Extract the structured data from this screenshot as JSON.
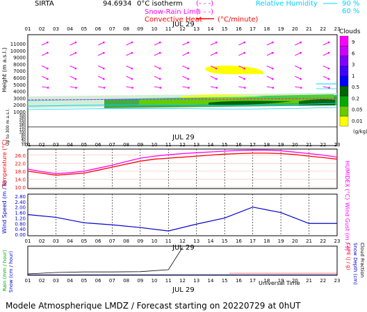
{
  "header": {
    "station": "SIRTA",
    "value_text": "94.6934",
    "legend_isotherm": "0°C isotherm",
    "legend_isotherm_style": "(- - -)",
    "legend_snow_rain": "Snow-Rain Limit",
    "legend_snow_rain_style": "(- - -)",
    "legend_convective": "Convective Heat",
    "legend_convective_unit": "(°C/minute)",
    "legend_rh": "Relative Humidity",
    "rh_90": "90 %",
    "rh_60": "60 %"
  },
  "hours": [
    "01",
    "02",
    "03",
    "04",
    "05",
    "06",
    "07",
    "08",
    "09",
    "10",
    "11",
    "12",
    "13",
    "14",
    "15",
    "16",
    "17",
    "18",
    "19",
    "20",
    "21",
    "22",
    "23"
  ],
  "date_label": "JUL 29",
  "footer": {
    "universal_time": "Universal Time",
    "model_line": "Modele Atmospherique LMDZ / Forecast starting on 20220729 at 0hUT"
  },
  "colors": {
    "magenta": "#ff00ff",
    "cyan": "#00e0ff",
    "red": "#ff0000",
    "blue": "#0000cc",
    "yellow": "#ffff00",
    "green": "#00cc00",
    "darkgreen": "#006600",
    "black": "#000000"
  },
  "chart_data": [
    {
      "type": "area",
      "name": "height_profile",
      "ylabel": "Height (m a.s.l.)",
      "ylabel_low": "Up to 300 m a.s.l.",
      "y_ticks": [
        "11000",
        "10000",
        "9000",
        "8000",
        "7000",
        "6000",
        "5000",
        "4000",
        "3000",
        "2000",
        "1000"
      ],
      "y_ticks_low": [
        "300",
        "280",
        "250",
        "200",
        "180",
        "150",
        "120",
        "100",
        "80",
        "60",
        "40",
        "20",
        "10"
      ],
      "cloud_label": "Clouds",
      "cloud_unit": "(g/kg)",
      "cloud_scale": [
        "9",
        "6",
        "3",
        "1",
        "0.5",
        "0.2",
        "0.05",
        "0.01"
      ],
      "cloud_colors": [
        "#ff00ff",
        "#cc00ff",
        "#8000ff",
        "#4000ff",
        "#0000ff",
        "#006600",
        "#00aa00",
        "#66cc00",
        "#ffff00"
      ]
    },
    {
      "type": "line",
      "name": "temperature",
      "ylabel": "Temperature (°C)",
      "ylabel_right": "HUMIDEX (°C)",
      "y_ticks": [
        "26.0",
        "22.0",
        "18.0",
        "14.0",
        "10.0"
      ],
      "ylim": [
        10,
        28
      ],
      "x": [
        1,
        2,
        3,
        4,
        5,
        6,
        7,
        8,
        9,
        10,
        11,
        12,
        13,
        14,
        15,
        16,
        17,
        18,
        19,
        20,
        21,
        22,
        23
      ],
      "series": [
        {
          "color": "#ff0000",
          "values": [
            18.0,
            17.0,
            16.0,
            16.5,
            17.0,
            18.5,
            20.0,
            21.5,
            23.0,
            24.0,
            24.5,
            25.0,
            25.5,
            26.0,
            26.5,
            26.8,
            27.0,
            27.0,
            26.8,
            26.3,
            25.5,
            24.8,
            24.0
          ]
        },
        {
          "color": "#ff00ff",
          "values": [
            19.0,
            17.8,
            16.8,
            17.2,
            18.0,
            19.5,
            21.0,
            22.8,
            24.5,
            25.5,
            26.2,
            26.8,
            27.2,
            27.6,
            28.0,
            28.3,
            28.5,
            28.5,
            28.2,
            27.5,
            26.8,
            26.0,
            25.0
          ]
        }
      ]
    },
    {
      "type": "line",
      "name": "wind",
      "ylabel": "Wind Speed (m / s)",
      "ylabel_right": "Wind Gust (m / s)",
      "y_ticks": [
        "2.80",
        "2.40",
        "2.00",
        "1.60",
        "1.20",
        "0.80",
        "0.40",
        "0.00"
      ],
      "ylim": [
        0,
        2.8
      ],
      "x": [
        1,
        3,
        5,
        7,
        9,
        11,
        13,
        15,
        17,
        19,
        21,
        23
      ],
      "series": [
        {
          "color": "#0000cc",
          "values": [
            1.45,
            1.25,
            0.85,
            0.7,
            0.5,
            0.25,
            0.75,
            1.2,
            2.0,
            1.6,
            0.8,
            0.8
          ]
        }
      ]
    },
    {
      "type": "line",
      "name": "precipitation",
      "ylabel_left_1": "Rain (mm / hour)",
      "ylabel_left_2": "Snow (cm / hour)",
      "ylabel_right_1": "CAPE (J / g)",
      "ylabel_right_2": "Snow Depth (cm)",
      "ylabel_right_3": "Cloud Fraction",
      "x": [
        1,
        3,
        5,
        7,
        9,
        11,
        12
      ],
      "series": [
        {
          "color": "#000000",
          "values": [
            0.05,
            0.1,
            0.12,
            0.12,
            0.13,
            0.2,
            1.0
          ]
        }
      ]
    }
  ]
}
